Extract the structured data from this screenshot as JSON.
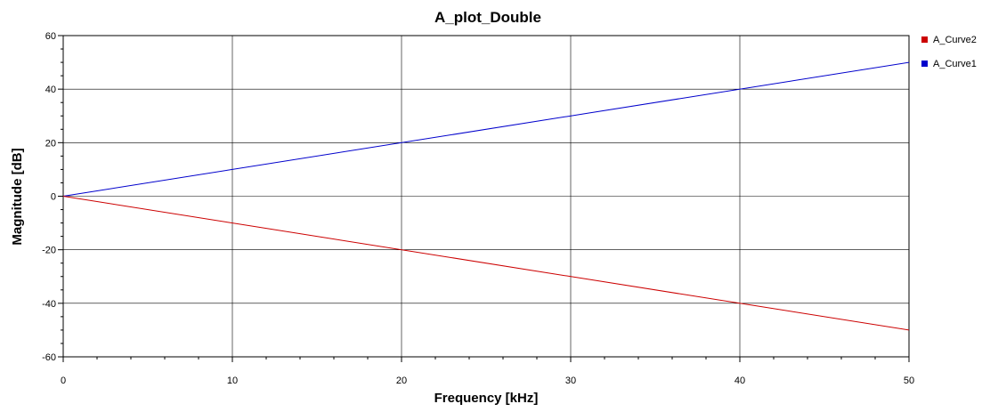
{
  "chart_data": {
    "type": "line",
    "title": "A_plot_Double",
    "xlabel": "Frequency [kHz]",
    "ylabel": "Magnitude [dB]",
    "xlim": [
      0,
      50
    ],
    "ylim": [
      -60,
      60
    ],
    "xticks": [
      0,
      10,
      20,
      30,
      40,
      50
    ],
    "yticks": [
      -60,
      -40,
      -20,
      0,
      20,
      40,
      60
    ],
    "grid": true,
    "legend_position": "top-right",
    "legend_order": [
      "A_Curve2",
      "A_Curve1"
    ],
    "series": [
      {
        "name": "A_Curve1",
        "color": "#0000cc",
        "x": [
          0,
          50
        ],
        "y": [
          0,
          50
        ]
      },
      {
        "name": "A_Curve2",
        "color": "#cc0000",
        "x": [
          0,
          50
        ],
        "y": [
          0,
          -50
        ]
      }
    ]
  }
}
